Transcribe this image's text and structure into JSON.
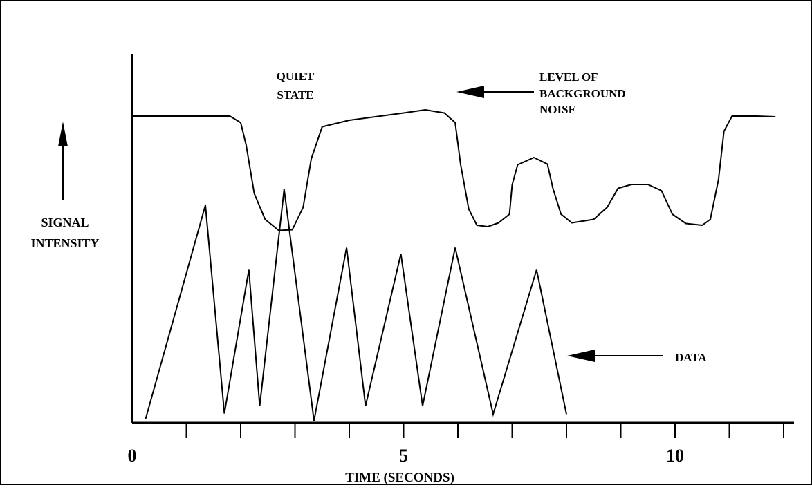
{
  "chart_data": {
    "type": "line",
    "title": "",
    "xlabel": "TIME (SECONDS)",
    "ylabel": "SIGNAL INTENSITY",
    "xlim": [
      0,
      12
    ],
    "ylim": [
      0,
      100
    ],
    "grid": false,
    "x_ticks": [
      0,
      1,
      2,
      3,
      4,
      5,
      6,
      7,
      8,
      9,
      10,
      11,
      12
    ],
    "x_tick_labels": [
      {
        "x": 0,
        "label": "0"
      },
      {
        "x": 5,
        "label": "5"
      },
      {
        "x": 10,
        "label": "10"
      }
    ],
    "series": [
      {
        "points": [
          [
            0.0,
            88.4
          ],
          [
            1.8,
            88.4
          ],
          [
            2.0,
            86.5
          ],
          [
            2.1,
            80
          ],
          [
            2.25,
            66
          ],
          [
            2.45,
            58.5
          ],
          [
            2.7,
            55.3
          ],
          [
            2.95,
            55.5
          ],
          [
            3.15,
            62
          ],
          [
            3.3,
            76
          ],
          [
            3.5,
            85.3
          ],
          [
            4.0,
            87.2
          ],
          [
            5.0,
            89.3
          ],
          [
            5.4,
            90.2
          ],
          [
            5.75,
            89.3
          ],
          [
            5.95,
            86.5
          ],
          [
            6.05,
            74.5
          ],
          [
            6.2,
            61.5
          ],
          [
            6.35,
            56.8
          ],
          [
            6.55,
            56.4
          ],
          [
            6.75,
            57.5
          ],
          [
            6.95,
            60
          ],
          [
            7.0,
            68.5
          ],
          [
            7.1,
            74.3
          ],
          [
            7.4,
            76.4
          ],
          [
            7.65,
            74.5
          ],
          [
            7.75,
            67.5
          ],
          [
            7.9,
            60
          ],
          [
            8.1,
            57.5
          ],
          [
            8.5,
            58.5
          ],
          [
            8.75,
            62
          ],
          [
            8.95,
            67.5
          ],
          [
            9.2,
            68.6
          ],
          [
            9.5,
            68.6
          ],
          [
            9.75,
            66.8
          ],
          [
            9.95,
            60
          ],
          [
            10.2,
            57.3
          ],
          [
            10.5,
            56.8
          ],
          [
            10.65,
            58.5
          ],
          [
            10.8,
            70
          ],
          [
            10.9,
            84
          ],
          [
            11.05,
            88.4
          ],
          [
            11.5,
            88.4
          ],
          [
            11.85,
            88.2
          ]
        ]
      },
      {
        "points": [
          [
            0.25,
            0.8
          ],
          [
            1.35,
            62.6
          ],
          [
            1.7,
            2.3
          ],
          [
            2.15,
            43.9
          ],
          [
            2.35,
            4.5
          ],
          [
            2.8,
            67.2
          ],
          [
            3.35,
            0.2
          ],
          [
            3.95,
            50.3
          ],
          [
            4.3,
            4.5
          ],
          [
            4.95,
            48.5
          ],
          [
            5.35,
            4.5
          ],
          [
            5.95,
            50.3
          ],
          [
            6.65,
            2.1
          ],
          [
            7.45,
            43.9
          ],
          [
            8.0,
            2.1
          ]
        ]
      }
    ],
    "annotations": {
      "quiet_state": [
        "QUIET",
        "STATE"
      ],
      "background_noise": [
        "LEVEL OF",
        "BACKGROUND",
        "NOISE"
      ],
      "data": "DATA"
    }
  }
}
